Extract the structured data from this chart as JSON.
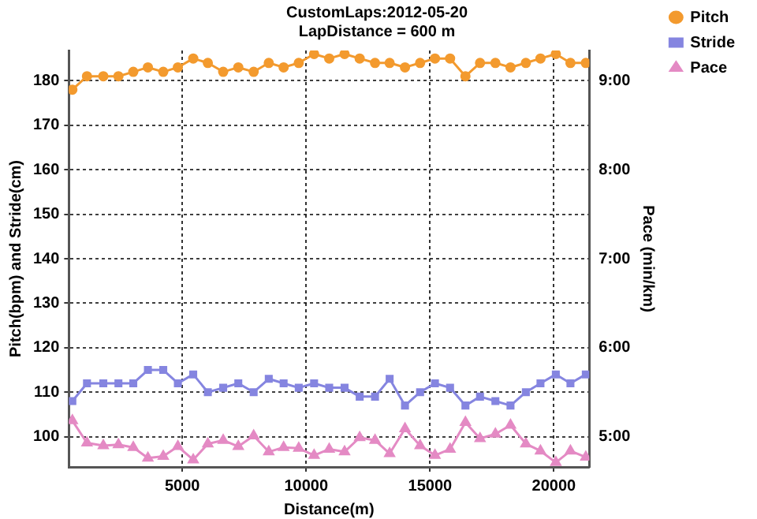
{
  "chart_data": {
    "type": "line",
    "title": "CustomLaps:2012-05-20",
    "subtitle": "LapDistance = 600 m",
    "xlabel": "Distance(m)",
    "ylabel": "Pitch(bpm) and Stride(cm)",
    "y2label": "Pace (min/km)",
    "x": [
      560,
      1150,
      1810,
      2420,
      3020,
      3610,
      4230,
      4820,
      5440,
      6030,
      6650,
      7260,
      7880,
      8490,
      9090,
      9700,
      10320,
      10930,
      11550,
      12160,
      12780,
      13370,
      13990,
      14600,
      15200,
      15810,
      16430,
      17020,
      17640,
      18250,
      18870,
      19460,
      20080,
      20670,
      21290
    ],
    "series": [
      {
        "name": "Pitch",
        "color": "#f39a2e",
        "marker": "circle",
        "values": [
          178,
          181,
          181,
          181,
          182,
          183,
          182,
          183,
          185,
          184,
          182,
          183,
          182,
          184,
          183,
          184,
          186,
          185,
          186,
          185,
          184,
          184,
          183,
          184,
          185,
          185,
          181,
          184,
          184,
          183,
          184,
          185,
          186,
          184,
          184
        ]
      },
      {
        "name": "Stride",
        "color": "#8585e0",
        "marker": "square",
        "values": [
          108,
          112,
          112,
          112,
          112,
          115,
          115,
          112,
          114,
          110,
          111,
          112,
          110,
          113,
          112,
          111,
          112,
          111,
          111,
          109,
          109,
          113,
          107,
          110,
          112,
          111,
          107,
          109,
          108,
          107,
          110,
          112,
          114,
          112,
          114
        ]
      },
      {
        "name": "Pace",
        "color": "#e48ac4",
        "marker": "triangle",
        "axis": "y2",
        "values": [
          5.18,
          4.93,
          4.9,
          4.91,
          4.88,
          4.76,
          4.78,
          4.89,
          4.74,
          4.92,
          4.96,
          4.89,
          5.01,
          4.83,
          4.88,
          4.87,
          4.79,
          4.86,
          4.83,
          4.99,
          4.96,
          4.81,
          5.09,
          4.9,
          4.79,
          4.86,
          5.16,
          4.98,
          5.03,
          5.13,
          4.92,
          4.84,
          4.71,
          4.84,
          4.77
        ]
      }
    ],
    "xlim": [
      420,
      21430
    ],
    "xticks": [
      5000,
      10000,
      15000,
      20000
    ],
    "ylim": [
      93.2,
      186.8
    ],
    "yticks": [
      100,
      110,
      120,
      130,
      140,
      150,
      160,
      170,
      180
    ],
    "y2lim": [
      4.66,
      9.34
    ],
    "y2ticks": [
      {
        "value": 5,
        "label": "5:00"
      },
      {
        "value": 6,
        "label": "6:00"
      },
      {
        "value": 7,
        "label": "7:00"
      },
      {
        "value": 8,
        "label": "8:00"
      },
      {
        "value": 9,
        "label": "9:00"
      }
    ],
    "grid": true,
    "legend": "top right",
    "line_style": "solid"
  }
}
